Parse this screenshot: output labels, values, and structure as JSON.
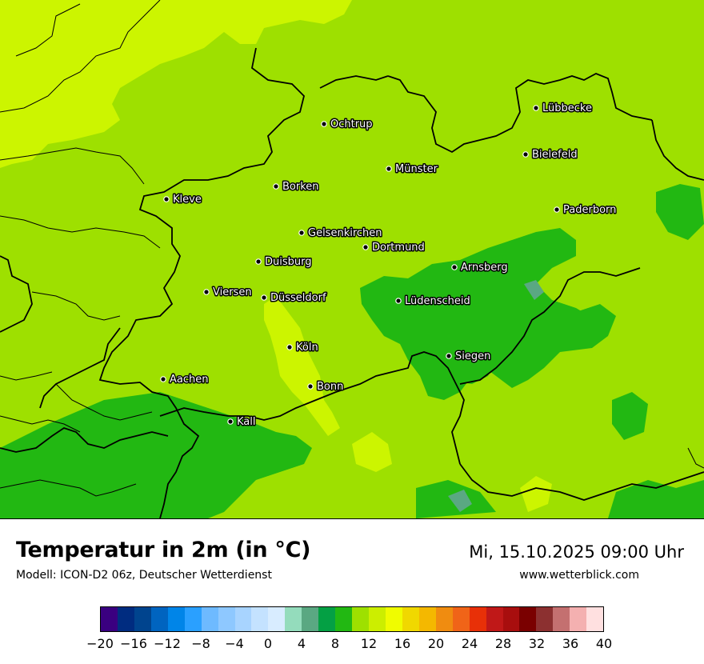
{
  "map": {
    "cities": [
      {
        "name": "Lübbecke"
      },
      {
        "name": "Ochtrup"
      },
      {
        "name": "Bielefeld"
      },
      {
        "name": "Münster"
      },
      {
        "name": "Borken"
      },
      {
        "name": "Kleve"
      },
      {
        "name": "Paderborn"
      },
      {
        "name": "Gelsenkirchen"
      },
      {
        "name": "Dortmund"
      },
      {
        "name": "Duisburg"
      },
      {
        "name": "Arnsberg"
      },
      {
        "name": "Viersen"
      },
      {
        "name": "Düsseldorf"
      },
      {
        "name": "Lüdenscheid"
      },
      {
        "name": "Köln"
      },
      {
        "name": "Siegen"
      },
      {
        "name": "Aachen"
      },
      {
        "name": "Bonn"
      },
      {
        "name": "Kall"
      }
    ]
  },
  "header": {
    "title": "Temperatur in 2m (in °C)",
    "model": "Modell: ICON-D2 06z, Deutscher Wetterdienst",
    "datetime": "Mi, 15.10.2025 09:00 Uhr",
    "website": "www.wetterblick.com"
  },
  "legend": {
    "colors": [
      "#3a0080",
      "#002c80",
      "#00448e",
      "#0064c0",
      "#0085e8",
      "#2aa0ff",
      "#6ebaff",
      "#8ec8ff",
      "#a8d4ff",
      "#c4e2ff",
      "#d8ecff",
      "#94dcbc",
      "#5aa882",
      "#04a044",
      "#22b812",
      "#9ee000",
      "#ccee00",
      "#f0fc00",
      "#f0d800",
      "#f4b800",
      "#f08c10",
      "#f06418",
      "#e83008",
      "#c01818",
      "#a80e0e",
      "#7a0000",
      "#8c3030",
      "#c47070",
      "#f4b0b0",
      "#ffe0e0"
    ],
    "ticks": [
      "−20",
      "−16",
      "−12",
      "−8",
      "−4",
      "0",
      "4",
      "8",
      "12",
      "16",
      "20",
      "24",
      "28",
      "32",
      "36",
      "40"
    ]
  }
}
